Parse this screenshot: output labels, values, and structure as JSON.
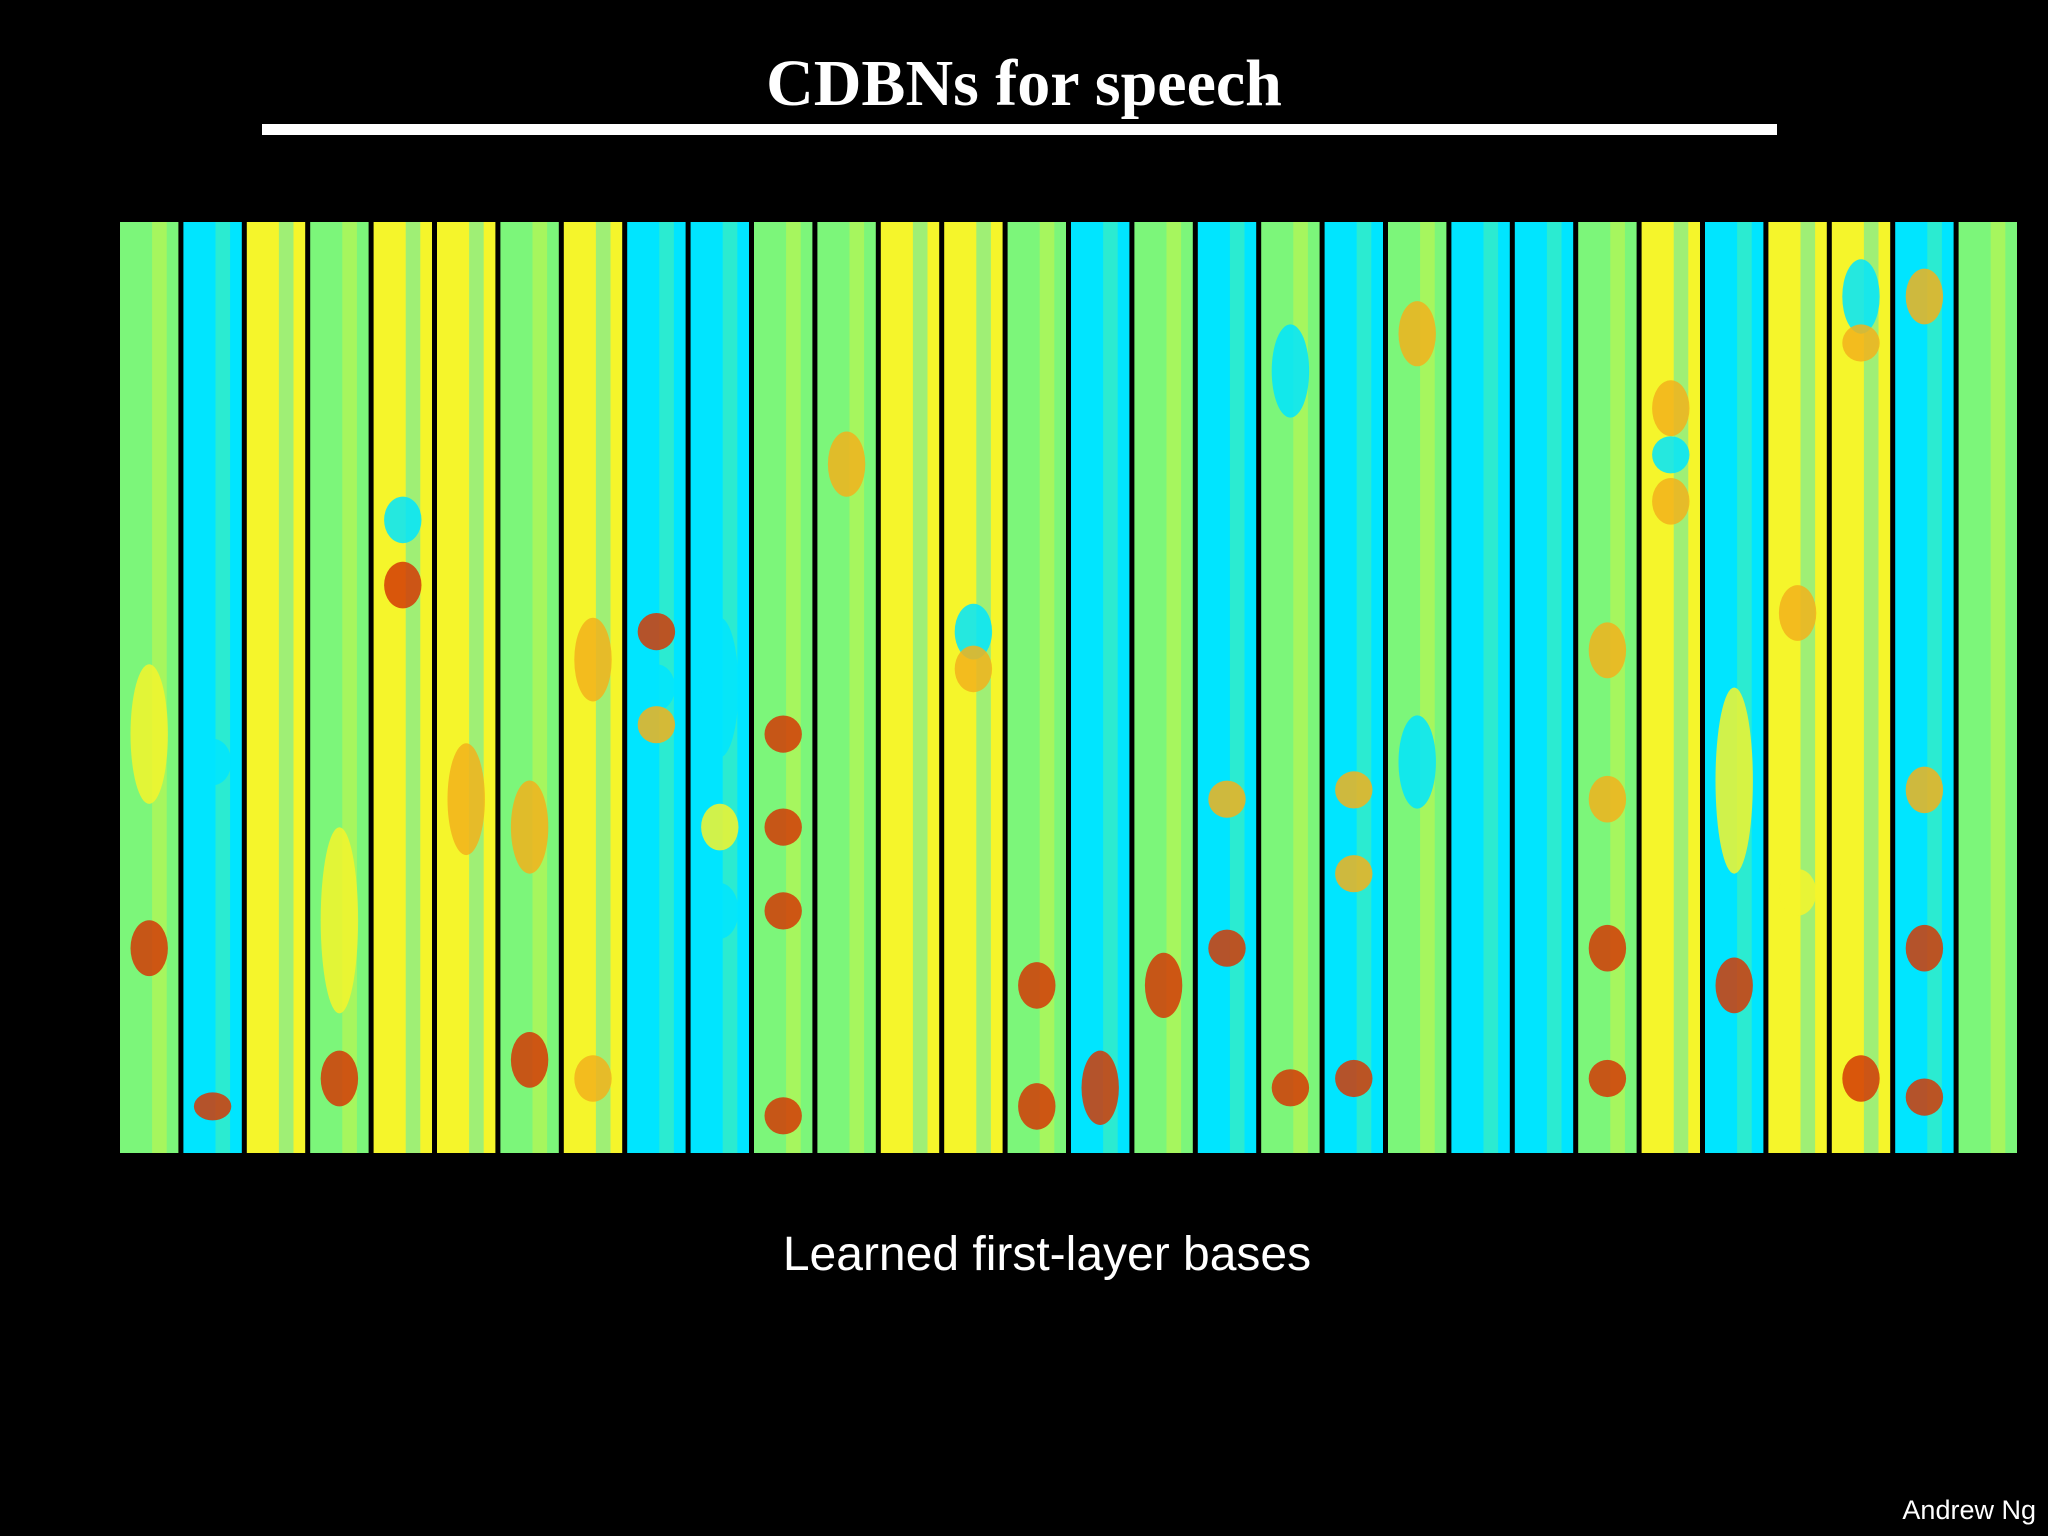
{
  "slide": {
    "title": "CDBNs for speech",
    "caption": "Learned first-layer bases",
    "author": "Andrew Ng"
  },
  "figure": {
    "columns": 30,
    "colormap": [
      "#00e5ff",
      "#7cf67a",
      "#f5f52b",
      "#f2b21c",
      "#d43a06"
    ]
  }
}
